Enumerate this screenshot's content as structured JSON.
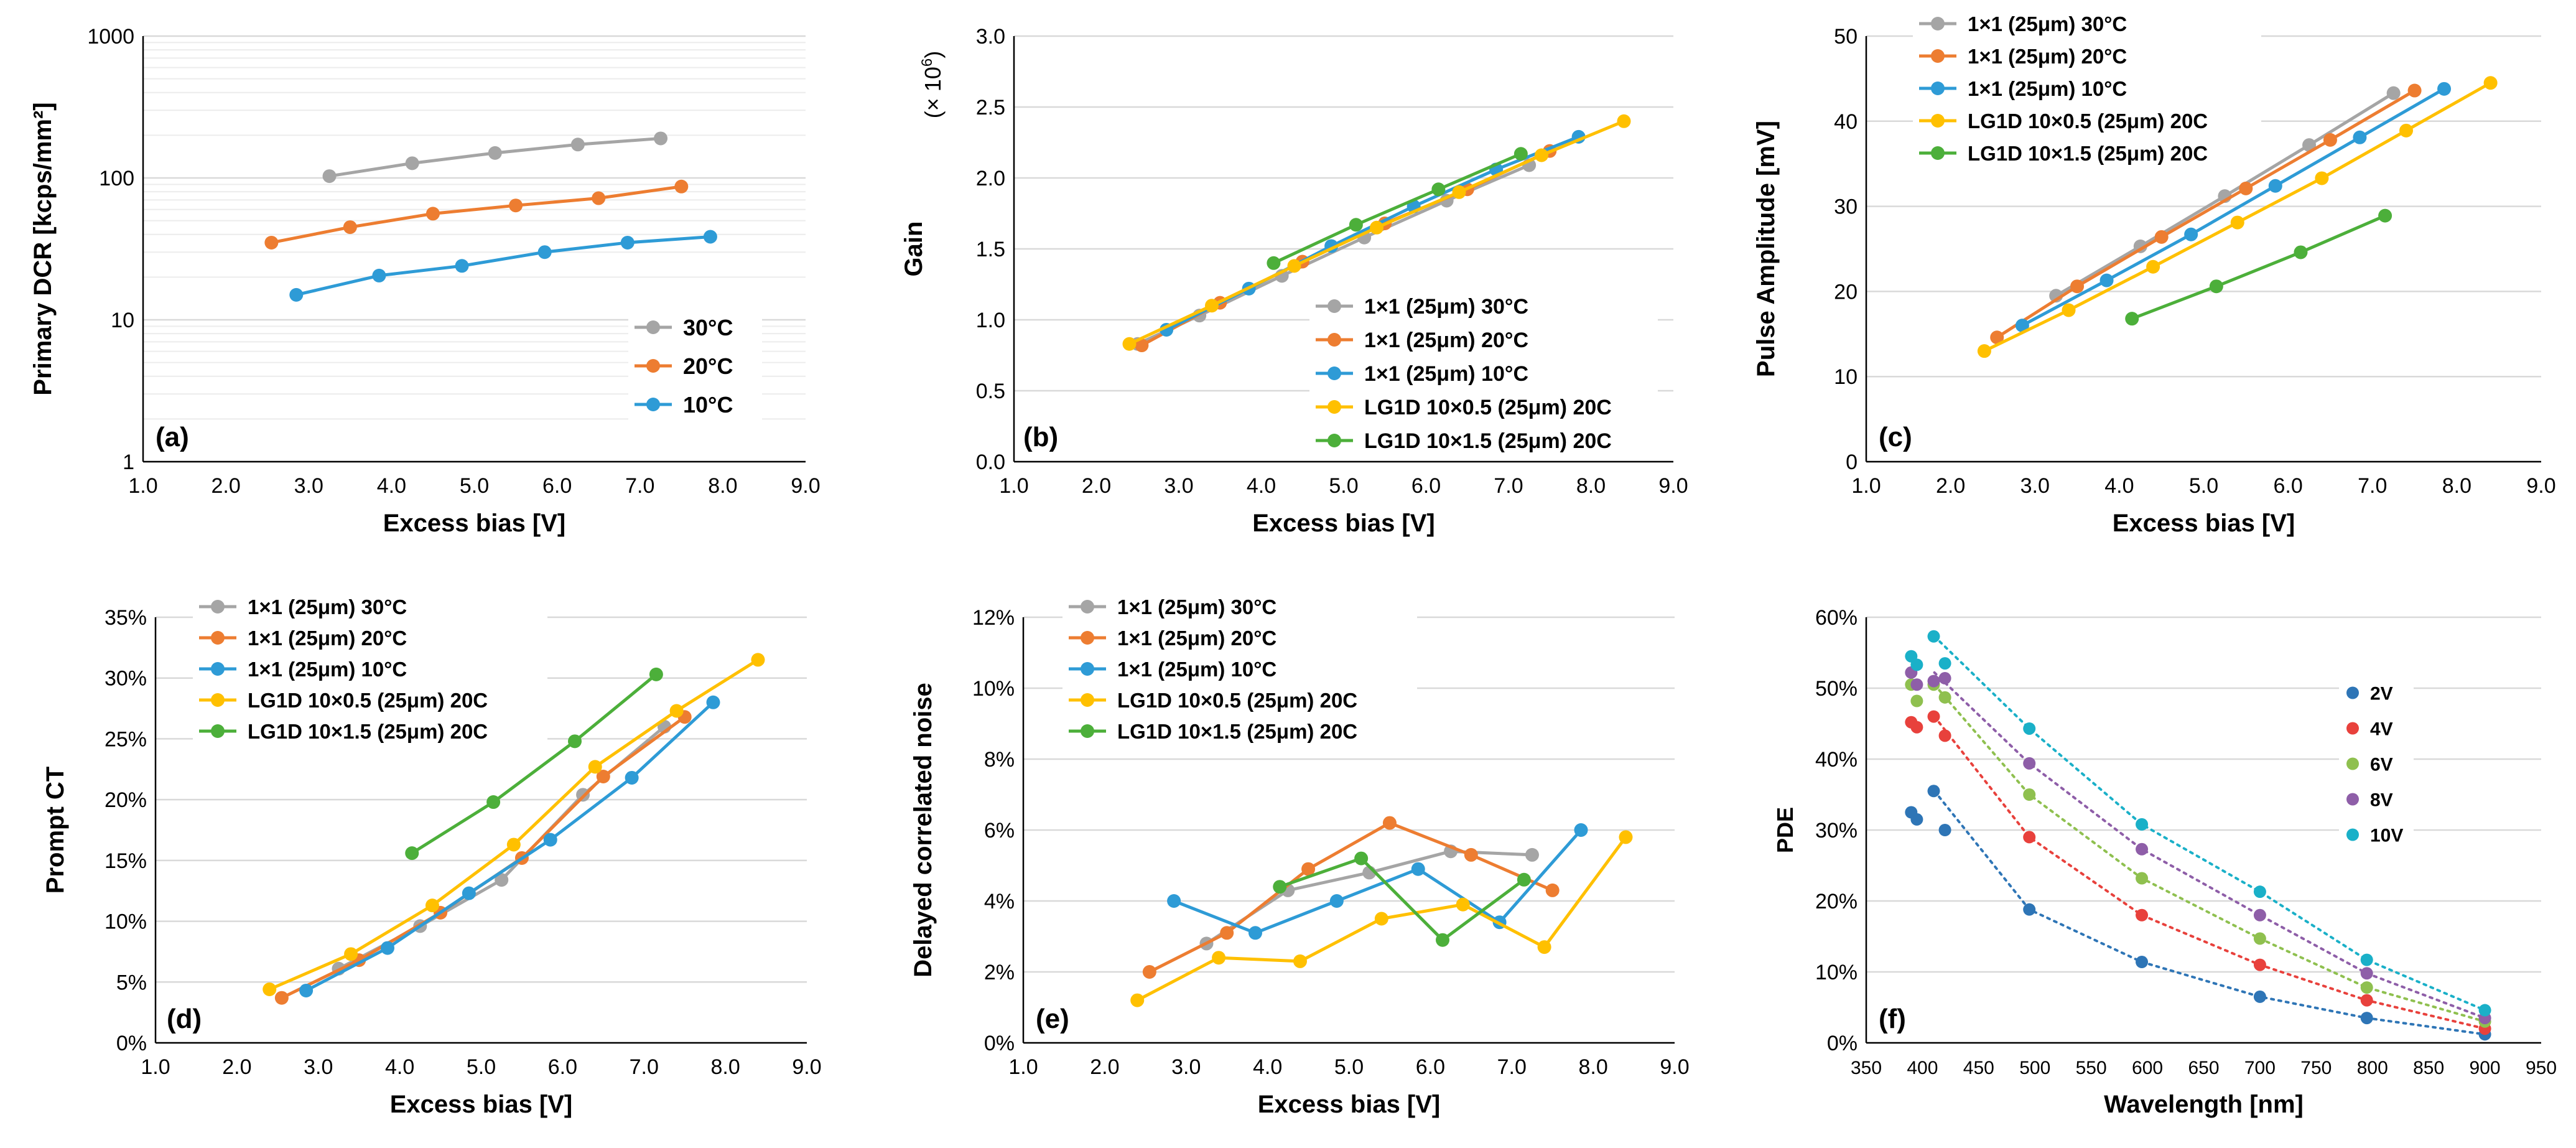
{
  "colors": {
    "c30": "#a5a5a5",
    "c20": "#ed7d31",
    "c10": "#2e9bd6",
    "cLGa": "#ffc000",
    "cLGb": "#4caf3a",
    "c2V": "#2e75b6",
    "c4V": "#e8413c",
    "c6V": "#8fc04f",
    "c8V": "#8e5ea8",
    "c10V": "#1ab0c8",
    "grid": "#d9d9d9",
    "axis": "#000000"
  },
  "chart_data": [
    {
      "id": "a",
      "type": "line",
      "panel_label": "(a)",
      "xlabel": "Excess bias  [V]",
      "ylabel": "Primary DCR  [kcps/mm²]",
      "yscale": "log",
      "xlim": [
        1,
        9
      ],
      "ylim": [
        1,
        1000
      ],
      "xticks": [
        "1.0",
        "2.0",
        "3.0",
        "4.0",
        "5.0",
        "6.0",
        "7.0",
        "8.0",
        "9.0"
      ],
      "yticks": [
        "1",
        "10",
        "100",
        "1000"
      ],
      "legend_position": "lower-right",
      "series": [
        {
          "name": "30°C",
          "color_key": "c30",
          "x": [
            3.25,
            4.25,
            5.25,
            6.25,
            7.25
          ],
          "y": [
            103,
            127,
            150,
            172,
            190
          ]
        },
        {
          "name": "20°C",
          "color_key": "c20",
          "x": [
            2.55,
            3.5,
            4.5,
            5.5,
            6.5,
            7.5
          ],
          "y": [
            35,
            45,
            56,
            64,
            72,
            87
          ]
        },
        {
          "name": "10°C",
          "color_key": "c10",
          "x": [
            2.85,
            3.85,
            4.85,
            5.85,
            6.85,
            7.85
          ],
          "y": [
            15,
            20.5,
            24,
            30,
            35,
            38.5
          ]
        }
      ]
    },
    {
      "id": "b",
      "type": "line",
      "panel_label": "(b)",
      "xlabel": "Excess bias  [V]",
      "ylabel": "Gain",
      "yunit": "(× 10",
      "yunit_exp": "6",
      "yunit_close": ")",
      "xlim": [
        1,
        9
      ],
      "ylim": [
        0,
        3
      ],
      "xticks": [
        "1.0",
        "2.0",
        "3.0",
        "4.0",
        "5.0",
        "6.0",
        "7.0",
        "8.0",
        "9.0"
      ],
      "yticks": [
        "0.0",
        "0.5",
        "1.0",
        "1.5",
        "2.0",
        "2.5",
        "3.0"
      ],
      "legend_position": "lower-right",
      "series": [
        {
          "name": "1×1 (25μm) 30°C",
          "color_key": "c30",
          "x": [
            2.5,
            3.25,
            4.25,
            5.25,
            6.25,
            7.25
          ],
          "y": [
            0.83,
            1.03,
            1.31,
            1.58,
            1.84,
            2.09
          ]
        },
        {
          "name": "1×1 (25μm) 20°C",
          "color_key": "c20",
          "x": [
            2.55,
            3.5,
            4.5,
            5.5,
            6.5,
            7.5
          ],
          "y": [
            0.82,
            1.12,
            1.41,
            1.68,
            1.92,
            2.19
          ]
        },
        {
          "name": "1×1 (25μm) 10°C",
          "color_key": "c10",
          "x": [
            2.85,
            3.85,
            4.85,
            5.85,
            6.85,
            7.85
          ],
          "y": [
            0.93,
            1.22,
            1.52,
            1.8,
            2.06,
            2.29
          ]
        },
        {
          "name": "LG1D 10×0.5 (25μm) 20C",
          "color_key": "cLGa",
          "x": [
            2.4,
            3.4,
            4.4,
            5.4,
            6.4,
            7.4,
            8.4
          ],
          "y": [
            0.83,
            1.1,
            1.38,
            1.65,
            1.9,
            2.16,
            2.4
          ]
        },
        {
          "name": "LG1D 10×1.5 (25μm) 20C",
          "color_key": "cLGb",
          "x": [
            4.15,
            5.15,
            6.15,
            7.15
          ],
          "y": [
            1.4,
            1.67,
            1.92,
            2.17
          ]
        }
      ]
    },
    {
      "id": "c",
      "type": "line",
      "panel_label": "(c)",
      "xlabel": "Excess bias  [V]",
      "ylabel": "Pulse Amplitude  [mV]",
      "xlim": [
        1,
        9
      ],
      "ylim": [
        0,
        50
      ],
      "xticks": [
        "1.0",
        "2.0",
        "3.0",
        "4.0",
        "5.0",
        "6.0",
        "7.0",
        "8.0",
        "9.0"
      ],
      "yticks": [
        "0",
        "10",
        "20",
        "30",
        "40",
        "50"
      ],
      "legend_position": "top-left",
      "series": [
        {
          "name": "1×1 (25μm) 30°C",
          "color_key": "c30",
          "x": [
            3.25,
            4.25,
            5.25,
            6.25,
            7.25
          ],
          "y": [
            19.5,
            25.3,
            31.2,
            37.2,
            43.3
          ]
        },
        {
          "name": "1×1 (25μm) 20°C",
          "color_key": "c20",
          "x": [
            2.55,
            3.5,
            4.5,
            5.5,
            6.5,
            7.5
          ],
          "y": [
            14.6,
            20.6,
            26.4,
            32.1,
            37.8,
            43.6
          ]
        },
        {
          "name": "1×1 (25μm) 10°C",
          "color_key": "c10",
          "x": [
            2.85,
            3.85,
            4.85,
            5.85,
            6.85,
            7.85
          ],
          "y": [
            16,
            21.3,
            26.7,
            32.4,
            38.1,
            43.8
          ]
        },
        {
          "name": "LG1D 10×0.5 (25μm) 20C",
          "color_key": "cLGa",
          "x": [
            2.4,
            3.4,
            4.4,
            5.4,
            6.4,
            7.4,
            8.4
          ],
          "y": [
            13,
            17.8,
            22.9,
            28.1,
            33.3,
            38.9,
            44.5
          ]
        },
        {
          "name": "LG1D 10×1.5 (25μm) 20C",
          "color_key": "cLGb",
          "x": [
            4.15,
            5.15,
            6.15,
            7.15
          ],
          "y": [
            16.8,
            20.6,
            24.6,
            28.9
          ]
        }
      ]
    },
    {
      "id": "d",
      "type": "line",
      "panel_label": "(d)",
      "xlabel": "Excess bias  [V]",
      "ylabel": "Prompt CT",
      "xlim": [
        1,
        9
      ],
      "ylim": [
        0,
        0.35
      ],
      "xticks": [
        "1.0",
        "2.0",
        "3.0",
        "4.0",
        "5.0",
        "6.0",
        "7.0",
        "8.0",
        "9.0"
      ],
      "yticks": [
        "0%",
        "5%",
        "10%",
        "15%",
        "20%",
        "25%",
        "30%",
        "35%"
      ],
      "legend_position": "top-left",
      "series": [
        {
          "name": "1×1 (25μm) 30°C",
          "color_key": "c30",
          "x": [
            3.25,
            4.25,
            5.25,
            6.25,
            7.25
          ],
          "y": [
            0.061,
            0.096,
            0.134,
            0.204,
            0.26
          ]
        },
        {
          "name": "1×1 (25μm) 20°C",
          "color_key": "c20",
          "x": [
            2.55,
            3.5,
            4.5,
            5.5,
            6.5,
            7.5
          ],
          "y": [
            0.037,
            0.068,
            0.107,
            0.152,
            0.219,
            0.268
          ]
        },
        {
          "name": "1×1 (25μm) 10°C",
          "color_key": "c10",
          "x": [
            2.85,
            3.85,
            4.85,
            5.85,
            6.85,
            7.85
          ],
          "y": [
            0.043,
            0.078,
            0.123,
            0.167,
            0.218,
            0.28
          ]
        },
        {
          "name": "LG1D 10×0.5 (25μm) 20C",
          "color_key": "cLGa",
          "x": [
            2.4,
            3.4,
            4.4,
            5.4,
            6.4,
            7.4,
            8.4
          ],
          "y": [
            0.044,
            0.073,
            0.113,
            0.163,
            0.227,
            0.273,
            0.315
          ]
        },
        {
          "name": "LG1D 10×1.5 (25μm) 20C",
          "color_key": "cLGb",
          "x": [
            4.15,
            5.15,
            6.15,
            7.15
          ],
          "y": [
            0.156,
            0.198,
            0.248,
            0.303
          ]
        }
      ]
    },
    {
      "id": "e",
      "type": "line",
      "panel_label": "(e)",
      "xlabel": "Excess bias  [V]",
      "ylabel": "Delayed correlated noise",
      "xlim": [
        1,
        9
      ],
      "ylim": [
        0,
        0.12
      ],
      "xticks": [
        "1.0",
        "2.0",
        "3.0",
        "4.0",
        "5.0",
        "6.0",
        "7.0",
        "8.0",
        "9.0"
      ],
      "yticks": [
        "0%",
        "2%",
        "4%",
        "6%",
        "8%",
        "10%",
        "12%"
      ],
      "legend_position": "top-left",
      "series": [
        {
          "name": "1×1 (25μm) 30°C",
          "color_key": "c30",
          "x": [
            3.25,
            4.25,
            5.25,
            6.25,
            7.25
          ],
          "y": [
            0.028,
            0.043,
            0.048,
            0.054,
            0.053
          ]
        },
        {
          "name": "1×1 (25μm) 20°C",
          "color_key": "c20",
          "x": [
            2.55,
            3.5,
            4.5,
            5.5,
            6.5,
            7.5
          ],
          "y": [
            0.02,
            0.031,
            0.049,
            0.062,
            0.053,
            0.043
          ]
        },
        {
          "name": "1×1 (25μm) 10°C",
          "color_key": "c10",
          "x": [
            2.85,
            3.85,
            4.85,
            5.85,
            6.85,
            7.85
          ],
          "y": [
            0.04,
            0.031,
            0.04,
            0.049,
            0.034,
            0.06
          ]
        },
        {
          "name": "LG1D 10×0.5 (25μm) 20C",
          "color_key": "cLGa",
          "x": [
            2.4,
            3.4,
            4.4,
            5.4,
            6.4,
            7.4,
            8.4
          ],
          "y": [
            0.012,
            0.024,
            0.023,
            0.035,
            0.039,
            0.027,
            0.058
          ]
        },
        {
          "name": "LG1D 10×1.5 (25μm) 20C",
          "color_key": "cLGb",
          "x": [
            4.15,
            5.15,
            6.15,
            7.15
          ],
          "y": [
            0.044,
            0.052,
            0.029,
            0.046
          ]
        }
      ]
    },
    {
      "id": "f",
      "type": "scatter",
      "panel_label": "(f)",
      "xlabel": "Wavelength  [nm]",
      "ylabel": "PDE",
      "xlim": [
        350,
        950
      ],
      "ylim": [
        0,
        0.6
      ],
      "xticks": [
        "350",
        "400",
        "450",
        "500",
        "550",
        "600",
        "650",
        "700",
        "750",
        "800",
        "850",
        "900",
        "950"
      ],
      "yticks": [
        "0%",
        "10%",
        "20%",
        "30%",
        "40%",
        "50%",
        "60%"
      ],
      "legend_position": "top-right",
      "trendline": "dotted",
      "series": [
        {
          "name": "2V",
          "color_key": "c2V",
          "x": [
            390,
            395,
            410,
            420,
            495,
            595,
            700,
            795,
            900
          ],
          "y": [
            0.325,
            0.315,
            0.355,
            0.3,
            0.188,
            0.114,
            0.065,
            0.035,
            0.012
          ]
        },
        {
          "name": "4V",
          "color_key": "c4V",
          "x": [
            390,
            395,
            410,
            420,
            495,
            595,
            700,
            795,
            900
          ],
          "y": [
            0.452,
            0.445,
            0.46,
            0.433,
            0.29,
            0.18,
            0.11,
            0.06,
            0.02
          ]
        },
        {
          "name": "6V",
          "color_key": "c6V",
          "x": [
            390,
            395,
            410,
            420,
            495,
            595,
            700,
            795,
            900
          ],
          "y": [
            0.505,
            0.482,
            0.505,
            0.487,
            0.35,
            0.232,
            0.147,
            0.078,
            0.03
          ]
        },
        {
          "name": "8V",
          "color_key": "c8V",
          "x": [
            390,
            395,
            410,
            420,
            495,
            595,
            700,
            795,
            900
          ],
          "y": [
            0.522,
            0.505,
            0.51,
            0.514,
            0.394,
            0.273,
            0.18,
            0.098,
            0.035
          ]
        },
        {
          "name": "10V",
          "color_key": "c10V",
          "x": [
            390,
            395,
            410,
            420,
            495,
            595,
            700,
            795,
            900
          ],
          "y": [
            0.545,
            0.533,
            0.573,
            0.535,
            0.443,
            0.308,
            0.213,
            0.117,
            0.046
          ]
        }
      ]
    }
  ]
}
